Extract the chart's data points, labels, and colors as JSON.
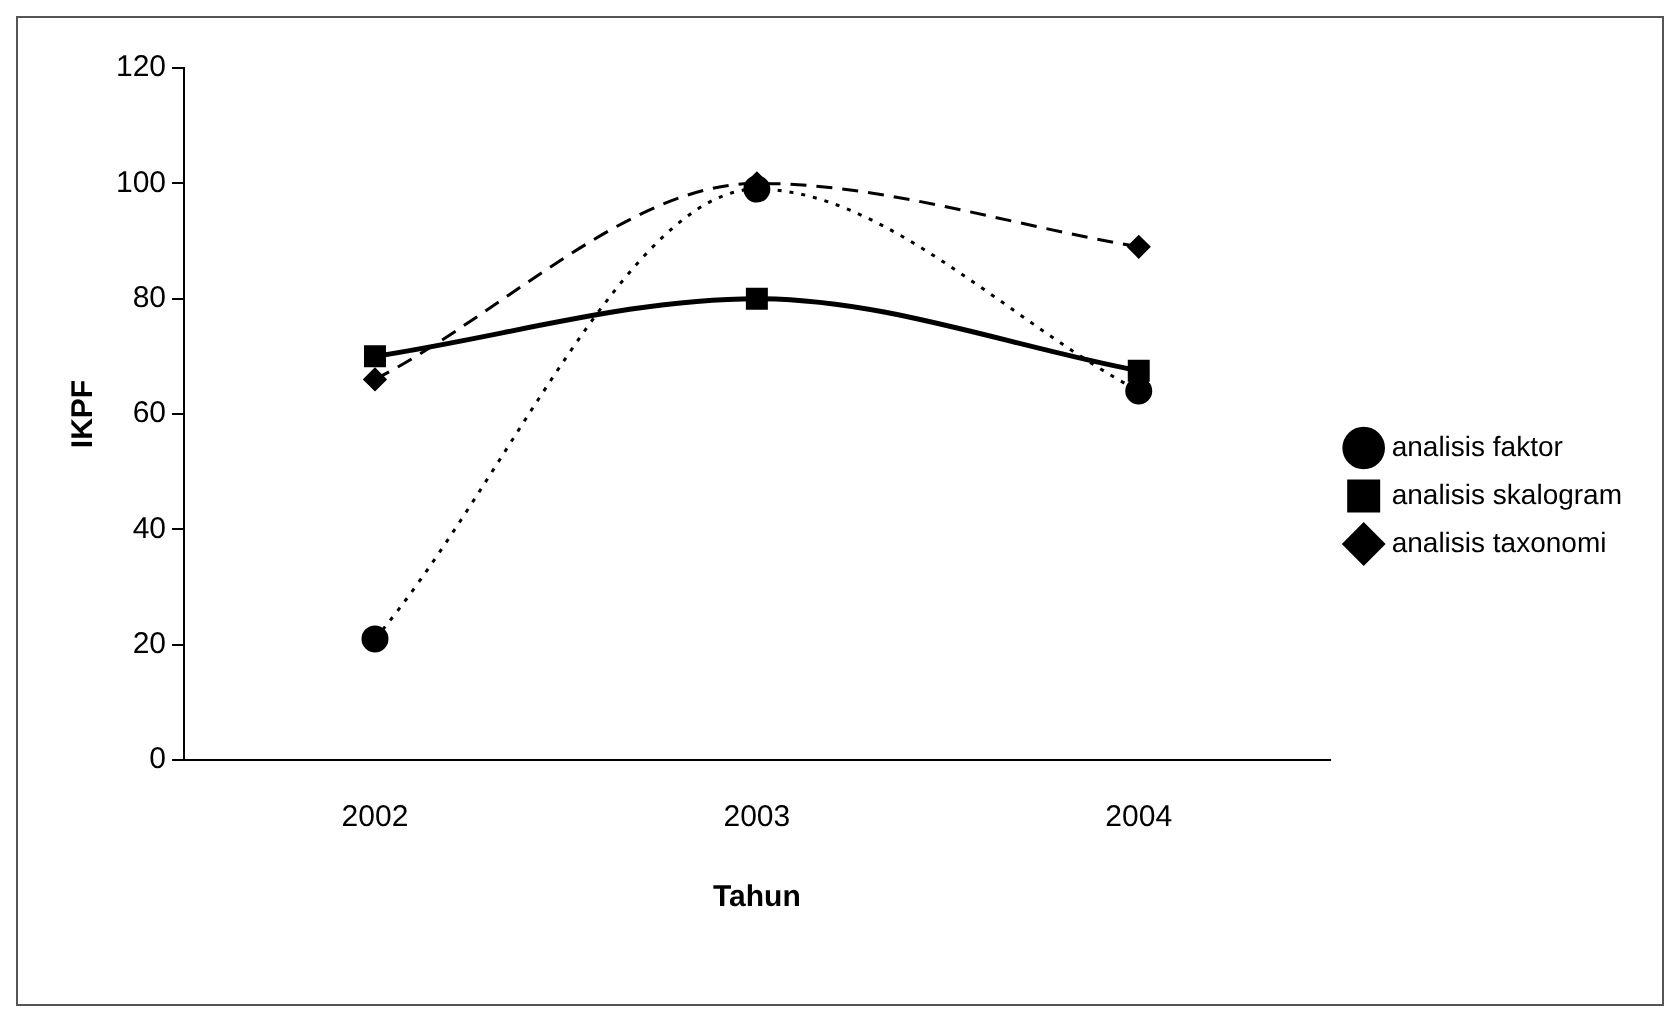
{
  "chart_data": {
    "type": "line",
    "xlabel": "Tahun",
    "ylabel": "IKPF",
    "categories": [
      "2002",
      "2003",
      "2004"
    ],
    "series": [
      {
        "name": "analisis faktor",
        "color": "#000000",
        "values": [
          21,
          99,
          64
        ],
        "marker": "circle",
        "line_style": "dotted"
      },
      {
        "name": "analisis skalogram",
        "color": "#000000",
        "values": [
          70,
          80,
          67.5
        ],
        "marker": "square",
        "line_style": "solid"
      },
      {
        "name": "analisis taxonomi",
        "color": "#000000",
        "values": [
          66,
          100,
          89
        ],
        "marker": "diamond",
        "line_style": "dashed"
      }
    ],
    "ylim": [
      0,
      120
    ],
    "yticks": [
      0,
      20,
      40,
      60,
      80,
      100,
      120
    ],
    "grid": false,
    "legend": "right"
  }
}
